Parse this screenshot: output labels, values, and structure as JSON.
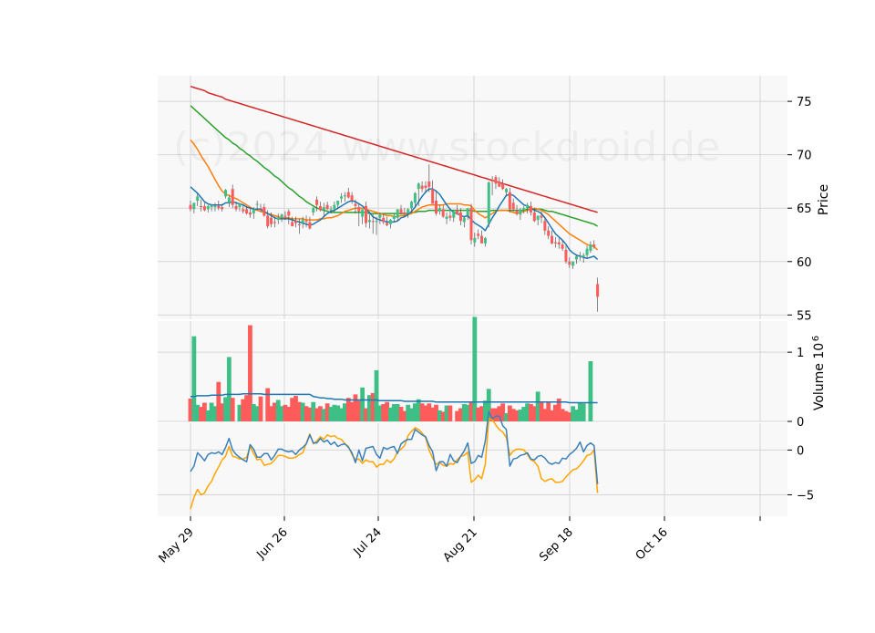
{
  "watermark": "(c)2024 www.stockdroid.de",
  "colors": {
    "up": "#3dbf85",
    "down": "#fe5b5b",
    "ma_fast": "#1f77b4",
    "ma_mid": "#ff7f0e",
    "ma_slow": "#2ca02c",
    "ma_long": "#d62728",
    "volume_ma": "#1f77b4",
    "osc_blue": "#3b80b8",
    "osc_orange": "#ffa500",
    "panel_bg": "#f8f8f8",
    "grid": "#d6d6d6"
  },
  "chart_data": {
    "type": "candlestick",
    "x_ticks": [
      "May 29",
      "Jun 26",
      "Jul 24",
      "Aug 21",
      "Sep 18",
      "Oct 16"
    ],
    "price_axis": {
      "label": "Price",
      "ticks": [
        55,
        60,
        65,
        70,
        75
      ],
      "ylim": [
        54.6,
        77.4
      ]
    },
    "volume_axis": {
      "label": "Volume  10",
      "exponent": "6",
      "ticks": [
        0,
        1
      ],
      "ylim": [
        0,
        1.45
      ]
    },
    "oscillator_axis": {
      "label": "",
      "ticks": [
        -5,
        0
      ],
      "ylim": [
        -7.4,
        3.0
      ]
    },
    "grid": true,
    "candles": {
      "open": [
        65.3,
        64.9,
        65.7,
        65.2,
        65.2,
        64.9,
        65.1,
        65.1,
        65.2,
        65.1,
        66.1,
        65.5,
        66.8,
        65.2,
        65.1,
        64.9,
        64.9,
        64.6,
        64.5,
        65.4,
        65.0,
        65.1,
        64.3,
        64.1,
        63.7,
        63.9,
        64.1,
        64.3,
        64.7,
        63.7,
        63.8,
        63.5,
        63.6,
        63.8,
        63.7,
        64.6,
        65.8,
        65.2,
        64.8,
        65.3,
        64.8,
        64.9,
        65.3,
        65.9,
        66.1,
        66.5,
        66.2,
        65.4,
        65.1,
        64.2,
        65.2,
        63.7,
        63.8,
        63.7,
        64.1,
        64.1,
        63.6,
        63.5,
        64.0,
        64.1,
        64.9,
        64.6,
        64.5,
        65.0,
        65.5,
        66.8,
        67.1,
        67.1,
        67.5,
        66.8,
        65.7,
        64.7,
        64.9,
        64.0,
        64.3,
        64.1,
        64.8,
        64.6,
        63.7,
        64.3,
        65.0,
        61.8,
        62.6,
        62.4,
        61.7,
        63.6,
        67.6,
        67.9,
        67.5,
        67.3,
        66.5,
        66.5,
        65.5,
        64.8,
        64.4,
        64.8,
        65.0,
        65.2,
        64.6,
        63.9,
        64.3,
        63.8,
        62.9,
        62.4,
        61.8,
        61.8,
        61.6,
        61.1,
        60.0,
        59.6,
        60.2,
        60.5,
        60.4,
        60.6,
        61.0,
        61.6,
        57.9
      ],
      "high": [
        65.7,
        65.5,
        66.4,
        65.8,
        65.5,
        65.3,
        65.4,
        65.5,
        65.7,
        65.4,
        66.8,
        66.2,
        67.2,
        65.6,
        65.4,
        65.3,
        65.2,
        65.0,
        65.1,
        65.7,
        65.4,
        65.4,
        64.8,
        64.6,
        64.2,
        64.5,
        64.5,
        64.7,
        64.9,
        64.2,
        64.2,
        64.0,
        64.2,
        64.3,
        64.2,
        65.1,
        66.1,
        65.6,
        65.5,
        65.6,
        65.2,
        65.6,
        65.7,
        66.4,
        66.5,
        66.9,
        66.5,
        65.8,
        65.5,
        64.9,
        65.6,
        64.4,
        64.4,
        64.2,
        64.6,
        64.5,
        64.2,
        64.0,
        64.5,
        64.7,
        65.3,
        65.0,
        65.0,
        65.7,
        66.5,
        67.4,
        67.5,
        67.5,
        69.1,
        67.6,
        66.6,
        65.3,
        65.3,
        64.6,
        64.7,
        64.6,
        65.3,
        65.0,
        64.2,
        64.8,
        65.4,
        62.7,
        63.0,
        62.9,
        62.3,
        67.5,
        68.0,
        68.1,
        67.9,
        67.7,
        66.9,
        66.9,
        65.9,
        65.3,
        65.0,
        65.2,
        65.5,
        65.6,
        65.0,
        64.3,
        64.7,
        64.2,
        63.3,
        62.9,
        62.3,
        62.2,
        62.0,
        61.5,
        60.4,
        60.0,
        60.6,
        60.9,
        60.8,
        61.5,
        61.9,
        62.0,
        58.5
      ],
      "low": [
        64.7,
        64.5,
        65.2,
        64.7,
        64.7,
        64.6,
        64.7,
        64.7,
        64.8,
        64.7,
        65.9,
        65.1,
        65.0,
        64.7,
        64.7,
        64.5,
        64.4,
        64.1,
        64.0,
        64.9,
        64.6,
        64.2,
        63.1,
        63.2,
        63.2,
        63.5,
        63.7,
        63.9,
        63.5,
        63.3,
        63.2,
        62.6,
        63.1,
        63.2,
        63.0,
        64.3,
        64.7,
        64.7,
        64.2,
        64.8,
        64.5,
        64.6,
        64.9,
        65.5,
        65.6,
        65.9,
        65.4,
        64.5,
        63.3,
        63.5,
        63.2,
        63.1,
        62.6,
        62.5,
        63.5,
        63.5,
        63.3,
        63.1,
        63.7,
        63.8,
        64.4,
        64.2,
        64.1,
        64.6,
        65.1,
        65.2,
        66.5,
        66.4,
        66.5,
        66.4,
        64.3,
        64.4,
        64.1,
        63.5,
        63.8,
        63.7,
        64.4,
        63.4,
        63.2,
        63.9,
        61.6,
        61.4,
        62.1,
        61.9,
        61.4,
        63.2,
        66.2,
        66.8,
        67.0,
        66.7,
        66.1,
        64.6,
        64.7,
        64.3,
        63.9,
        64.5,
        64.5,
        64.3,
        63.7,
        63.4,
        63.6,
        62.5,
        62.1,
        61.6,
        61.3,
        61.2,
        61.0,
        59.8,
        59.4,
        59.3,
        59.8,
        60.1,
        59.9,
        60.3,
        60.8,
        61.2,
        55.3
      ],
      "close": [
        64.9,
        65.5,
        66.1,
        65.1,
        64.8,
        65.2,
        65.3,
        65.2,
        65.0,
        64.9,
        66.7,
        66.0,
        65.3,
        64.9,
        65.4,
        64.7,
        64.5,
        64.4,
        64.9,
        65.4,
        64.9,
        64.3,
        63.3,
        63.5,
        63.6,
        64.1,
        64.4,
        64.2,
        64.3,
        63.3,
        63.6,
        63.4,
        63.9,
        63.7,
        63.1,
        65.0,
        65.3,
        64.8,
        65.1,
        64.9,
        64.9,
        65.3,
        65.7,
        66.1,
        66.2,
        66.0,
        65.7,
        65.2,
        64.7,
        64.9,
        63.6,
        63.9,
        63.7,
        63.8,
        64.4,
        63.7,
        63.4,
        63.9,
        64.3,
        64.9,
        64.5,
        64.4,
        64.9,
        65.6,
        66.4,
        67.3,
        66.8,
        66.9,
        67.0,
        65.4,
        64.5,
        65.0,
        64.2,
        64.2,
        64.1,
        64.7,
        64.4,
        63.8,
        64.1,
        65.0,
        62.0,
        62.2,
        62.4,
        61.7,
        62.2,
        67.4,
        67.5,
        67.3,
        67.0,
        66.8,
        66.8,
        64.9,
        64.9,
        64.5,
        64.9,
        65.0,
        65.3,
        64.6,
        63.8,
        64.3,
        64.1,
        62.9,
        62.4,
        61.7,
        61.7,
        61.6,
        61.2,
        60.0,
        59.7,
        60.0,
        60.5,
        60.5,
        60.6,
        61.2,
        61.6,
        61.4,
        56.7
      ]
    },
    "ma_fast": [
      67.0,
      66.7,
      66.4,
      66.0,
      65.6,
      65.4,
      65.3,
      65.3,
      65.3,
      65.3,
      65.5,
      65.5,
      65.6,
      65.5,
      65.4,
      65.3,
      65.1,
      65.0,
      64.9,
      64.9,
      64.9,
      64.7,
      64.5,
      64.3,
      64.1,
      64.0,
      64.0,
      64.0,
      64.0,
      63.9,
      63.8,
      63.7,
      63.6,
      63.5,
      63.4,
      63.5,
      63.7,
      63.9,
      64.2,
      64.5,
      64.7,
      64.8,
      65.0,
      65.2,
      65.4,
      65.6,
      65.7,
      65.6,
      65.4,
      65.2,
      64.9,
      64.6,
      64.2,
      64.0,
      63.9,
      63.8,
      63.7,
      63.7,
      63.7,
      63.8,
      64.1,
      64.2,
      64.4,
      64.7,
      65.1,
      65.6,
      66.1,
      66.5,
      66.8,
      66.8,
      66.6,
      66.3,
      65.8,
      65.3,
      64.9,
      64.6,
      64.5,
      64.3,
      64.2,
      64.3,
      63.9,
      63.6,
      63.4,
      63.2,
      62.9,
      63.5,
      64.1,
      64.6,
      65.2,
      65.7,
      66.2,
      66.3,
      66.2,
      65.9,
      65.6,
      65.3,
      65.2,
      65.0,
      64.8,
      64.7,
      64.5,
      64.1,
      63.6,
      63.1,
      62.6,
      62.3,
      62.0,
      61.6,
      61.1,
      60.8,
      60.6,
      60.5,
      60.4,
      60.3,
      60.4,
      60.5,
      60.2
    ],
    "ma_mid": [
      71.4,
      71.0,
      70.5,
      69.9,
      69.4,
      68.9,
      68.3,
      67.7,
      67.1,
      66.6,
      66.3,
      66.2,
      66.0,
      65.9,
      65.7,
      65.5,
      65.3,
      65.1,
      64.9,
      64.8,
      64.7,
      64.6,
      64.5,
      64.4,
      64.3,
      64.2,
      64.1,
      64.1,
      64.1,
      64.0,
      64.0,
      64.0,
      64.0,
      63.9,
      63.9,
      63.9,
      63.9,
      64.0,
      64.0,
      64.1,
      64.1,
      64.2,
      64.3,
      64.5,
      64.7,
      64.8,
      64.9,
      65.0,
      65.0,
      65.0,
      64.9,
      64.8,
      64.7,
      64.6,
      64.5,
      64.4,
      64.3,
      64.3,
      64.2,
      64.2,
      64.3,
      64.3,
      64.4,
      64.5,
      64.7,
      64.9,
      65.1,
      65.2,
      65.3,
      65.3,
      65.3,
      65.3,
      65.3,
      65.4,
      65.4,
      65.4,
      65.4,
      65.4,
      65.3,
      65.3,
      65.2,
      64.8,
      64.5,
      64.3,
      64.1,
      64.3,
      64.5,
      64.7,
      64.8,
      64.8,
      64.8,
      64.7,
      64.6,
      64.5,
      64.6,
      64.7,
      64.8,
      64.9,
      65.0,
      64.9,
      64.8,
      64.6,
      64.4,
      64.1,
      63.8,
      63.5,
      63.2,
      62.9,
      62.6,
      62.4,
      62.2,
      62.0,
      61.8,
      61.6,
      61.5,
      61.4,
      61.1
    ],
    "ma_slow": [
      74.6,
      74.3,
      74.0,
      73.7,
      73.4,
      73.1,
      72.8,
      72.5,
      72.2,
      71.9,
      71.6,
      71.4,
      71.1,
      70.9,
      70.6,
      70.4,
      70.1,
      69.9,
      69.6,
      69.4,
      69.1,
      68.8,
      68.6,
      68.3,
      68.0,
      67.8,
      67.5,
      67.2,
      66.9,
      66.7,
      66.4,
      66.1,
      65.9,
      65.6,
      65.4,
      65.2,
      65.0,
      64.9,
      64.8,
      64.7,
      64.6,
      64.6,
      64.6,
      64.6,
      64.6,
      64.6,
      64.6,
      64.6,
      64.6,
      64.6,
      64.6,
      64.5,
      64.5,
      64.5,
      64.5,
      64.5,
      64.5,
      64.5,
      64.5,
      64.5,
      64.5,
      64.5,
      64.5,
      64.6,
      64.6,
      64.7,
      64.7,
      64.7,
      64.8,
      64.8,
      64.8,
      64.8,
      64.8,
      64.8,
      64.8,
      64.8,
      64.8,
      64.8,
      64.8,
      64.8,
      64.8,
      64.7,
      64.7,
      64.7,
      64.7,
      64.7,
      64.8,
      64.8,
      64.8,
      64.8,
      64.8,
      64.8,
      64.8,
      64.8,
      64.8,
      64.8,
      64.9,
      64.9,
      64.9,
      64.9,
      64.9,
      64.8,
      64.7,
      64.7,
      64.6,
      64.5,
      64.4,
      64.3,
      64.2,
      64.1,
      64.0,
      63.9,
      63.8,
      63.7,
      63.6,
      63.5,
      63.3
    ],
    "ma_long": [
      76.4,
      76.3,
      76.2,
      76.1,
      76.0,
      75.8,
      75.7,
      75.6,
      75.5,
      75.4,
      75.2,
      75.1,
      75.0,
      74.9,
      74.8,
      74.7,
      74.6,
      74.5,
      74.4,
      74.3,
      74.2,
      74.1,
      74.0,
      73.9,
      73.8,
      73.7,
      73.6,
      73.5,
      73.4,
      73.3,
      73.2,
      73.1,
      73.0,
      72.9,
      72.8,
      72.7,
      72.6,
      72.5,
      72.4,
      72.3,
      72.2,
      72.1,
      72.0,
      71.9,
      71.8,
      71.7,
      71.6,
      71.5,
      71.4,
      71.3,
      71.2,
      71.1,
      71.0,
      70.9,
      70.8,
      70.7,
      70.6,
      70.5,
      70.4,
      70.3,
      70.2,
      70.1,
      70.0,
      69.9,
      69.8,
      69.7,
      69.6,
      69.5,
      69.4,
      69.3,
      69.2,
      69.1,
      69.0,
      68.9,
      68.8,
      68.7,
      68.6,
      68.5,
      68.4,
      68.3,
      68.2,
      68.1,
      68.0,
      67.9,
      67.8,
      67.7,
      67.6,
      67.5,
      67.4,
      67.3,
      67.2,
      67.1,
      67.0,
      66.9,
      66.8,
      66.7,
      66.6,
      66.5,
      66.4,
      66.3,
      66.2,
      66.1,
      66.0,
      65.9,
      65.8,
      65.7,
      65.6,
      65.5,
      65.4,
      65.3,
      65.2,
      65.1,
      65.0,
      64.9,
      64.8,
      64.7,
      64.6
    ],
    "volume": [
      0.33,
      1.23,
      0.24,
      0.21,
      0.27,
      0.16,
      0.27,
      0.22,
      0.57,
      0.26,
      0.35,
      0.93,
      0.34,
      0.0,
      0.24,
      0.32,
      0.38,
      1.39,
      0.25,
      0.22,
      0.36,
      0.0,
      0.48,
      0.22,
      0.27,
      0.31,
      0.22,
      0.24,
      0.21,
      0.34,
      0.37,
      0.28,
      0.27,
      0.22,
      0.2,
      0.28,
      0.19,
      0.22,
      0.18,
      0.26,
      0.21,
      0.24,
      0.23,
      0.19,
      0.26,
      0.34,
      0.28,
      0.39,
      0.3,
      0.49,
      0.19,
      0.38,
      0.41,
      0.74,
      0.23,
      0.25,
      0.28,
      0.2,
      0.25,
      0.25,
      0.21,
      0.15,
      0.24,
      0.19,
      0.26,
      0.32,
      0.26,
      0.23,
      0.26,
      0.2,
      0.24,
      0.16,
      0.14,
      0.23,
      0.23,
      0.0,
      0.15,
      0.19,
      0.25,
      0.24,
      0.27,
      1.51,
      0.2,
      0.22,
      0.3,
      0.47,
      0.19,
      0.19,
      0.22,
      0.26,
      0.12,
      0.23,
      0.18,
      0.16,
      0.17,
      0.21,
      0.26,
      0.25,
      0.22,
      0.43,
      0.28,
      0.18,
      0.28,
      0.16,
      0.24,
      0.33,
      0.18,
      0.15,
      0.13,
      0.22,
      0.17,
      0.27,
      0.26,
      0.0,
      0.87,
      0.0,
      0.0
    ],
    "volume_ma": [
      0.36,
      0.36,
      0.37,
      0.37,
      0.37,
      0.37,
      0.38,
      0.38,
      0.38,
      0.38,
      0.39,
      0.39,
      0.39,
      0.39,
      0.39,
      0.4,
      0.4,
      0.4,
      0.4,
      0.4,
      0.4,
      0.39,
      0.39,
      0.39,
      0.39,
      0.39,
      0.39,
      0.39,
      0.39,
      0.39,
      0.39,
      0.39,
      0.39,
      0.39,
      0.39,
      0.36,
      0.35,
      0.34,
      0.34,
      0.33,
      0.33,
      0.32,
      0.32,
      0.32,
      0.31,
      0.31,
      0.31,
      0.31,
      0.31,
      0.31,
      0.31,
      0.31,
      0.31,
      0.31,
      0.3,
      0.3,
      0.3,
      0.3,
      0.3,
      0.3,
      0.3,
      0.29,
      0.29,
      0.29,
      0.29,
      0.29,
      0.29,
      0.29,
      0.29,
      0.29,
      0.28,
      0.28,
      0.28,
      0.28,
      0.28,
      0.28,
      0.28,
      0.28,
      0.28,
      0.28,
      0.28,
      0.28,
      0.28,
      0.28,
      0.28,
      0.28,
      0.28,
      0.28,
      0.28,
      0.28,
      0.28,
      0.28,
      0.28,
      0.28,
      0.28,
      0.28,
      0.28,
      0.28,
      0.28,
      0.28,
      0.28,
      0.28,
      0.28,
      0.28,
      0.28,
      0.28,
      0.28,
      0.28,
      0.27,
      0.27,
      0.27,
      0.27,
      0.27,
      0.27,
      0.27,
      0.27,
      0.27
    ],
    "osc_blue": [
      -2.4,
      -1.8,
      -0.3,
      -0.7,
      -1.2,
      -0.5,
      -0.3,
      -0.4,
      -0.2,
      -0.5,
      0.3,
      1.3,
      0.0,
      -0.5,
      -0.8,
      -1.1,
      -1.3,
      0.6,
      0.1,
      -0.8,
      -0.8,
      -0.4,
      -0.4,
      -1.1,
      -0.6,
      0.1,
      0.1,
      -0.1,
      -0.2,
      -0.1,
      -0.5,
      0.0,
      0.3,
      0.7,
      1.7,
      0.8,
      0.8,
      1.3,
      0.9,
      1.1,
      0.6,
      0.9,
      0.4,
      0.6,
      0.7,
      0.3,
      -0.3,
      -1.4,
      0.0,
      -1.2,
      0.2,
      0.3,
      0.4,
      -0.5,
      -0.9,
      0.3,
      0.1,
      0.3,
      0.4,
      -0.4,
      0.7,
      1.0,
      1.2,
      1.2,
      2.3,
      2.0,
      1.7,
      1.5,
      0.5,
      -0.2,
      -2.3,
      -1.3,
      -1.3,
      -1.8,
      -0.5,
      -1.2,
      -1.4,
      -0.7,
      -0.1,
      0.8,
      -1.5,
      -1.3,
      -0.6,
      -0.8,
      1.0,
      4.3,
      3.5,
      3.8,
      3.8,
      2.7,
      2.3,
      -1.8,
      -1.0,
      -0.9,
      -0.6,
      -0.5,
      -0.3,
      -1.0,
      -1.1,
      -0.7,
      -0.6,
      -0.9,
      -1.4,
      -1.6,
      -1.4,
      -1.5,
      -0.9,
      -1.0,
      -0.5,
      -0.2,
      0.2,
      0.9,
      -0.2,
      0.5,
      0.8,
      0.5,
      -3.8
    ],
    "osc_orange": [
      -6.6,
      -5.3,
      -4.4,
      -5.0,
      -4.8,
      -4.0,
      -3.5,
      -2.6,
      -1.9,
      -1.1,
      -0.7,
      0.4,
      -0.7,
      -0.8,
      -1.0,
      -1.0,
      -0.8,
      0.4,
      -0.4,
      -1.1,
      -1.0,
      -1.7,
      -1.6,
      -1.5,
      -1.1,
      -0.6,
      -0.6,
      -0.7,
      -0.9,
      -0.9,
      -0.8,
      -0.5,
      -0.3,
      0.8,
      1.8,
      0.7,
      1.0,
      1.5,
      1.2,
      1.7,
      1.5,
      1.6,
      1.3,
      1.2,
      0.7,
      0.4,
      -0.5,
      -1.1,
      -1.0,
      -1.5,
      -1.1,
      -1.3,
      -1.3,
      -1.9,
      -1.6,
      -1.6,
      -1.1,
      -1.4,
      -1.0,
      -0.2,
      0.1,
      0.5,
      1.6,
      2.1,
      2.5,
      2.3,
      1.9,
      1.4,
      0.0,
      -0.9,
      -1.6,
      -1.4,
      -1.7,
      -1.8,
      -1.5,
      -1.6,
      -1.1,
      -0.7,
      -0.6,
      -0.2,
      -3.6,
      -3.3,
      -2.8,
      -3.2,
      -1.6,
      3.5,
      3.4,
      2.8,
      2.3,
      2.0,
      1.4,
      -0.6,
      -0.1,
      0.1,
      0.1,
      0.0,
      -0.5,
      -1.1,
      -1.3,
      -1.8,
      -3.2,
      -3.5,
      -3.3,
      -3.2,
      -3.6,
      -3.6,
      -3.5,
      -3.0,
      -2.6,
      -2.2,
      -2.1,
      -1.7,
      -1.2,
      -0.6,
      -0.5,
      0.0,
      -4.8
    ]
  }
}
